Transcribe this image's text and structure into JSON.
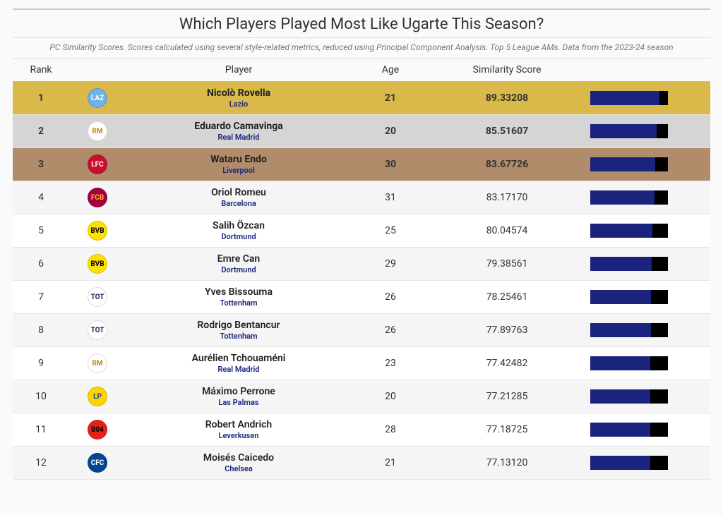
{
  "title": "Which Players Played Most Like Ugarte This Season?",
  "subtitle": "PC Similarity Scores. Scores calculated using several style-related metrics, reduced using Principal Component Analysis. Top 5 League AMs. Data from the 2023-24 season",
  "columns": {
    "rank": "Rank",
    "player": "Player",
    "age": "Age",
    "score": "Similarity Score"
  },
  "bar_max": 100,
  "bar_colors": {
    "fill": "#1a237e",
    "track": "#000000"
  },
  "medal_colors": {
    "gold": "#d8b94a",
    "silver": "#d5d5d5",
    "bronze": "#b08c6a"
  },
  "team_color": "#1a237e",
  "rows": [
    {
      "rank": 1,
      "player": "Nicolò Rovella",
      "team": "Lazio",
      "age": 21,
      "score": "89.33208",
      "score_num": 89.33208,
      "medal": "gold",
      "badge_bg": "#6fb2e6",
      "badge_fg": "#ffffff",
      "badge_txt": "LAZ"
    },
    {
      "rank": 2,
      "player": "Eduardo Camavinga",
      "team": "Real Madrid",
      "age": 20,
      "score": "85.51607",
      "score_num": 85.51607,
      "medal": "silver",
      "badge_bg": "#ffffff",
      "badge_fg": "#b8860b",
      "badge_txt": "RM"
    },
    {
      "rank": 3,
      "player": "Wataru Endo",
      "team": "Liverpool",
      "age": 30,
      "score": "83.67726",
      "score_num": 83.67726,
      "medal": "bronze",
      "badge_bg": "#c8102e",
      "badge_fg": "#ffffff",
      "badge_txt": "LFC"
    },
    {
      "rank": 4,
      "player": "Oriol Romeu",
      "team": "Barcelona",
      "age": 31,
      "score": "83.17170",
      "score_num": 83.1717,
      "medal": null,
      "badge_bg": "#a50044",
      "badge_fg": "#fdb913",
      "badge_txt": "FCB"
    },
    {
      "rank": 5,
      "player": "Salih Özcan",
      "team": "Dortmund",
      "age": 25,
      "score": "80.04574",
      "score_num": 80.04574,
      "medal": null,
      "badge_bg": "#fde100",
      "badge_fg": "#000000",
      "badge_txt": "BVB"
    },
    {
      "rank": 6,
      "player": "Emre Can",
      "team": "Dortmund",
      "age": 29,
      "score": "79.38561",
      "score_num": 79.38561,
      "medal": null,
      "badge_bg": "#fde100",
      "badge_fg": "#000000",
      "badge_txt": "BVB"
    },
    {
      "rank": 7,
      "player": "Yves Bissouma",
      "team": "Tottenham",
      "age": 26,
      "score": "78.25461",
      "score_num": 78.25461,
      "medal": null,
      "badge_bg": "#ffffff",
      "badge_fg": "#132257",
      "badge_txt": "TOT"
    },
    {
      "rank": 8,
      "player": "Rodrigo Bentancur",
      "team": "Tottenham",
      "age": 26,
      "score": "77.89763",
      "score_num": 77.89763,
      "medal": null,
      "badge_bg": "#ffffff",
      "badge_fg": "#132257",
      "badge_txt": "TOT"
    },
    {
      "rank": 9,
      "player": "Aurélien Tchouaméni",
      "team": "Real Madrid",
      "age": 23,
      "score": "77.42482",
      "score_num": 77.42482,
      "medal": null,
      "badge_bg": "#ffffff",
      "badge_fg": "#b8860b",
      "badge_txt": "RM"
    },
    {
      "rank": 10,
      "player": "Máximo Perrone",
      "team": "Las Palmas",
      "age": 20,
      "score": "77.21285",
      "score_num": 77.21285,
      "medal": null,
      "badge_bg": "#ffd200",
      "badge_fg": "#004b9b",
      "badge_txt": "LP"
    },
    {
      "rank": 11,
      "player": "Robert Andrich",
      "team": "Leverkusen",
      "age": 28,
      "score": "77.18725",
      "score_num": 77.18725,
      "medal": null,
      "badge_bg": "#e32219",
      "badge_fg": "#000000",
      "badge_txt": "B04"
    },
    {
      "rank": 12,
      "player": "Moisés Caicedo",
      "team": "Chelsea",
      "age": 21,
      "score": "77.13120",
      "score_num": 77.1312,
      "medal": null,
      "badge_bg": "#034694",
      "badge_fg": "#ffffff",
      "badge_txt": "CFC"
    }
  ]
}
